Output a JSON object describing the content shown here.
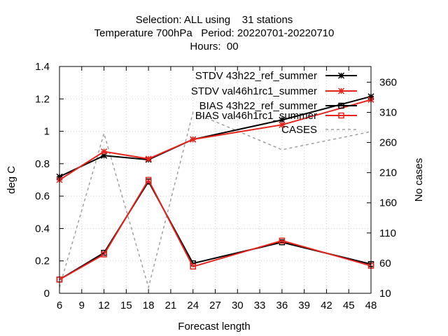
{
  "chart_data": {
    "type": "line",
    "title_lines": [
      "Selection: ALL using    31 stations",
      "Temperature 700hPa   Period: 20220701-20220710",
      "Hours:  00"
    ],
    "xlabel": "Forecast length",
    "ylabel": "deg C",
    "y2label": "No cases",
    "xlim": [
      6,
      48
    ],
    "ylim": [
      0,
      1.4
    ],
    "y2lim": [
      10,
      386
    ],
    "x_ticks": [
      6,
      9,
      12,
      15,
      18,
      21,
      24,
      27,
      30,
      33,
      36,
      39,
      42,
      45,
      48
    ],
    "y_ticks": [
      0,
      0.2,
      0.4,
      0.6,
      0.8,
      1,
      1.2,
      1.4
    ],
    "y2_ticks": [
      10,
      60,
      110,
      160,
      210,
      260,
      310,
      360
    ],
    "grid": true,
    "legend_position": "top-right",
    "x": [
      6,
      12,
      18,
      24,
      36,
      48
    ],
    "series": [
      {
        "name": "STDV 43h22_ref_summer",
        "axis": "left",
        "color": "#000000",
        "marker": "x",
        "dashed": false,
        "values": [
          0.72,
          0.85,
          0.825,
          0.95,
          1.07,
          1.215
        ]
      },
      {
        "name": "STDV val46h1rc1_summer",
        "axis": "left",
        "color": "#e8231a",
        "marker": "x",
        "dashed": false,
        "values": [
          0.7,
          0.875,
          0.83,
          0.95,
          1.04,
          1.195
        ]
      },
      {
        "name": "BIAS 43h22_ref_summer",
        "axis": "left",
        "color": "#000000",
        "marker": "square",
        "dashed": false,
        "values": [
          0.085,
          0.25,
          0.69,
          0.185,
          0.315,
          0.18
        ]
      },
      {
        "name": "BIAS val46h1rc1_summer",
        "axis": "left",
        "color": "#e8231a",
        "marker": "square",
        "dashed": false,
        "values": [
          0.085,
          0.24,
          0.7,
          0.165,
          0.325,
          0.17
        ]
      },
      {
        "name": "CASES",
        "axis": "right",
        "color": "#a0a0a0",
        "marker": "none",
        "dashed": true,
        "values": [
          20,
          275,
          20,
          310,
          248,
          278
        ]
      }
    ]
  }
}
